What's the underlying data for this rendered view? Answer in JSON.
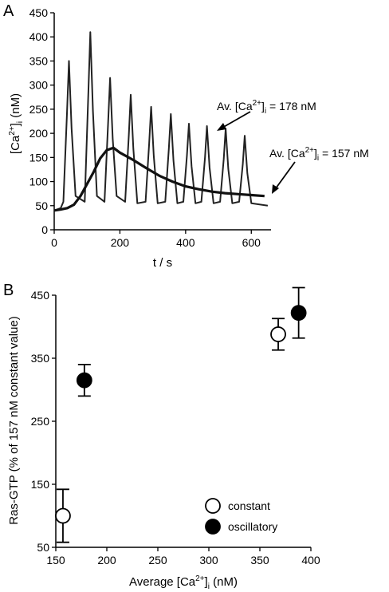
{
  "chart_data": [
    {
      "panel": "A",
      "type": "line",
      "xlabel": "t / s",
      "ylabel": "[Ca²⁺]ᵢ (nM)",
      "xlim": [
        0,
        660
      ],
      "ylim": [
        0,
        450
      ],
      "xticks": [
        0,
        200,
        400,
        600
      ],
      "yticks": [
        0,
        50,
        100,
        150,
        200,
        250,
        300,
        350,
        400,
        450
      ],
      "series": [
        {
          "kind": "oscillatory",
          "peak_times": [
            45,
            110,
            170,
            233,
            295,
            355,
            410,
            465,
            522,
            580
          ],
          "peak_values": [
            350,
            410,
            315,
            280,
            255,
            240,
            220,
            215,
            210,
            195
          ],
          "baseline": 50,
          "end_time": 650
        },
        {
          "kind": "constant",
          "x": [
            0,
            20,
            40,
            60,
            80,
            100,
            120,
            140,
            160,
            180,
            200,
            240,
            280,
            320,
            360,
            400,
            440,
            480,
            520,
            560,
            600,
            640
          ],
          "y": [
            40,
            42,
            45,
            52,
            70,
            95,
            120,
            148,
            165,
            170,
            160,
            145,
            128,
            112,
            100,
            90,
            84,
            79,
            76,
            74,
            72,
            70
          ]
        }
      ],
      "annotations": [
        {
          "prefix": "Av. [Ca",
          "sup": "2+",
          "mid": "]",
          "sub": "i",
          "suffix": " = 178 nM"
        },
        {
          "prefix": "Av. [Ca",
          "sup": "2+",
          "mid": "]",
          "sub": "i",
          "suffix": " = 157 nM"
        }
      ]
    },
    {
      "panel": "B",
      "type": "scatter",
      "xlabel": "Average [Ca²⁺]ᵢ (nM)",
      "ylabel": "Ras-GTP (% of 157 nM constant value)",
      "xlim": [
        150,
        400
      ],
      "ylim": [
        50,
        450
      ],
      "xticks": [
        150,
        200,
        250,
        300,
        350,
        400
      ],
      "yticks": [
        50,
        150,
        250,
        350,
        450
      ],
      "series": [
        {
          "name": "constant",
          "marker": "open-circle",
          "x": [
            157,
            368
          ],
          "y": [
            100,
            388
          ],
          "err": [
            42,
            25
          ]
        },
        {
          "name": "oscillatory",
          "marker": "filled-circle",
          "x": [
            178,
            388
          ],
          "y": [
            315,
            422
          ],
          "err": [
            25,
            40
          ]
        }
      ],
      "legend": "bottom-right"
    }
  ]
}
